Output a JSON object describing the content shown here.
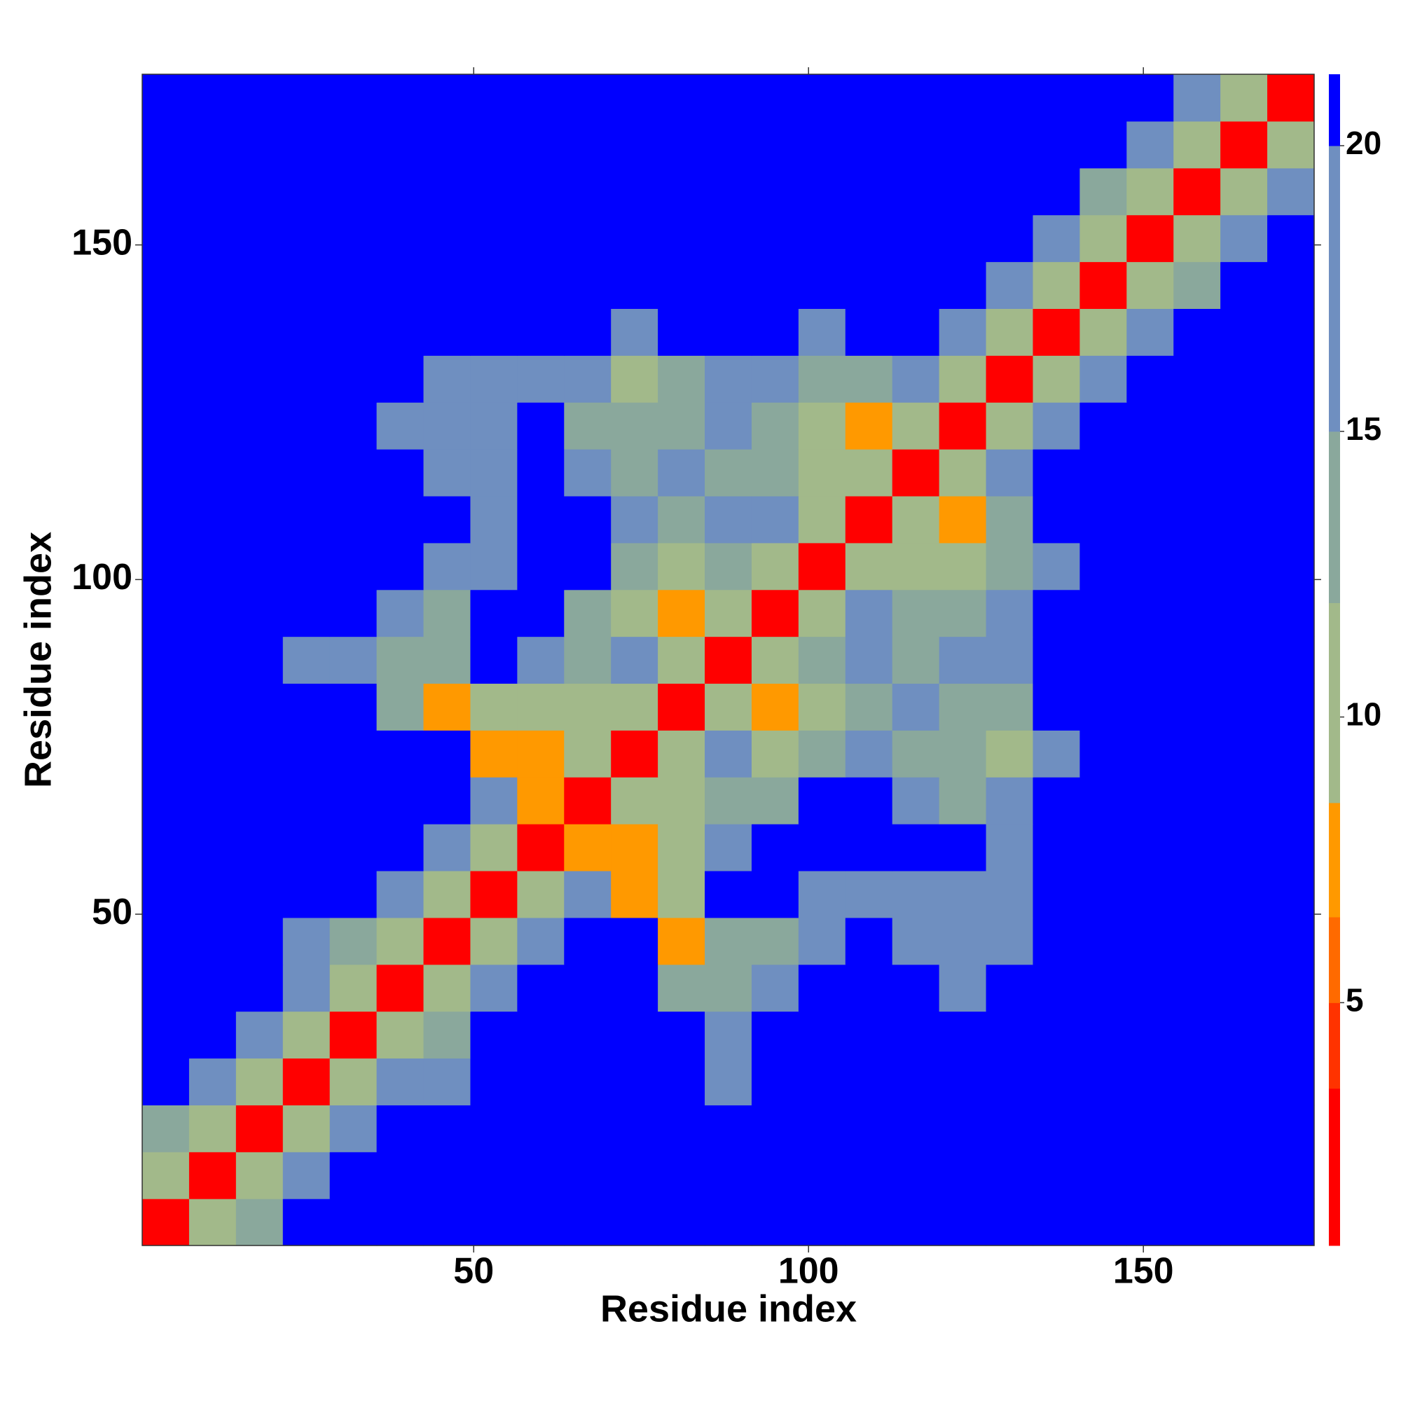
{
  "chart_data": {
    "type": "heatmap",
    "x_label": "Residue index",
    "y_label": "Residue index",
    "x": [
      4,
      11,
      18,
      25,
      32,
      39,
      46,
      53,
      60,
      67,
      74,
      81,
      88,
      95,
      102,
      109,
      116,
      123,
      130,
      137,
      144,
      151,
      158,
      165,
      172
    ],
    "y": [
      4,
      11,
      18,
      25,
      32,
      39,
      46,
      53,
      60,
      67,
      74,
      81,
      88,
      95,
      102,
      109,
      116,
      123,
      130,
      137,
      144,
      151,
      158,
      165,
      172
    ],
    "z": [
      [
        3,
        10,
        14,
        21,
        21,
        21,
        21,
        21,
        21,
        21,
        21,
        21,
        21,
        21,
        21,
        21,
        21,
        21,
        21,
        21,
        21,
        21,
        21,
        21,
        21
      ],
      [
        10,
        3,
        10,
        16,
        21,
        21,
        21,
        21,
        21,
        21,
        21,
        21,
        21,
        21,
        21,
        21,
        21,
        21,
        21,
        21,
        21,
        21,
        21,
        21,
        21
      ],
      [
        14,
        10,
        3,
        10,
        17,
        21,
        21,
        21,
        21,
        21,
        21,
        21,
        21,
        21,
        21,
        21,
        21,
        21,
        21,
        21,
        21,
        21,
        21,
        21,
        21
      ],
      [
        21,
        16,
        10,
        3,
        10,
        16,
        18,
        21,
        21,
        21,
        21,
        21,
        17,
        21,
        21,
        21,
        21,
        21,
        21,
        21,
        21,
        21,
        21,
        21,
        21
      ],
      [
        21,
        21,
        17,
        10,
        3,
        10,
        12,
        21,
        21,
        21,
        21,
        21,
        15,
        21,
        21,
        21,
        21,
        21,
        21,
        21,
        21,
        21,
        21,
        21,
        21
      ],
      [
        21,
        21,
        21,
        16,
        10,
        3,
        10,
        17,
        21,
        21,
        21,
        14,
        12,
        17,
        21,
        21,
        21,
        18,
        21,
        21,
        21,
        21,
        21,
        21,
        21
      ],
      [
        21,
        21,
        21,
        18,
        12,
        10,
        3,
        10,
        17,
        21,
        21,
        8,
        12,
        14,
        15,
        21,
        18,
        16,
        17,
        21,
        21,
        21,
        21,
        21,
        21
      ],
      [
        21,
        21,
        21,
        21,
        21,
        17,
        10,
        3,
        10,
        17,
        8,
        9,
        21,
        21,
        16,
        17,
        17,
        16,
        16,
        21,
        21,
        21,
        21,
        21,
        21
      ],
      [
        21,
        21,
        21,
        21,
        21,
        21,
        17,
        10,
        3,
        7,
        8,
        10,
        16,
        21,
        21,
        21,
        21,
        21,
        17,
        21,
        21,
        21,
        21,
        21,
        21
      ],
      [
        21,
        21,
        21,
        21,
        21,
        21,
        21,
        17,
        7,
        3,
        10,
        10,
        14,
        14,
        21,
        21,
        16,
        14,
        16,
        21,
        21,
        21,
        21,
        21,
        21
      ],
      [
        21,
        21,
        21,
        21,
        21,
        21,
        21,
        8,
        8,
        10,
        3,
        10,
        17,
        11,
        12,
        16,
        13,
        12,
        11,
        17,
        21,
        21,
        21,
        21,
        21
      ],
      [
        21,
        21,
        21,
        21,
        21,
        14,
        8,
        9,
        10,
        10,
        10,
        3,
        10,
        8,
        9,
        14,
        15,
        12,
        14,
        21,
        21,
        21,
        21,
        21,
        21
      ],
      [
        21,
        21,
        21,
        17,
        15,
        12,
        12,
        21,
        16,
        14,
        17,
        10,
        3,
        10,
        12,
        15,
        14,
        15,
        17,
        21,
        21,
        21,
        21,
        21,
        21
      ],
      [
        21,
        21,
        21,
        21,
        21,
        17,
        14,
        21,
        21,
        14,
        11,
        8,
        10,
        3,
        10,
        17,
        12,
        13,
        16,
        21,
        21,
        21,
        21,
        21,
        21
      ],
      [
        21,
        21,
        21,
        21,
        21,
        21,
        15,
        16,
        21,
        21,
        12,
        9,
        12,
        10,
        3,
        10,
        9,
        9,
        13,
        17,
        21,
        21,
        21,
        21,
        21
      ],
      [
        21,
        21,
        21,
        21,
        21,
        21,
        21,
        17,
        21,
        21,
        16,
        14,
        15,
        17,
        10,
        3,
        10,
        8,
        14,
        21,
        21,
        21,
        21,
        21,
        21
      ],
      [
        21,
        21,
        21,
        21,
        21,
        21,
        18,
        17,
        21,
        16,
        13,
        15,
        14,
        12,
        9,
        10,
        3,
        10,
        17,
        21,
        21,
        21,
        21,
        21,
        21
      ],
      [
        21,
        21,
        21,
        21,
        21,
        18,
        16,
        16,
        21,
        14,
        12,
        12,
        15,
        13,
        9,
        8,
        10,
        3,
        10,
        17,
        21,
        21,
        21,
        21,
        21
      ],
      [
        21,
        21,
        21,
        21,
        21,
        21,
        17,
        16,
        17,
        16,
        11,
        14,
        17,
        16,
        13,
        14,
        17,
        10,
        3,
        10,
        16,
        21,
        21,
        21,
        21
      ],
      [
        21,
        21,
        21,
        21,
        21,
        21,
        21,
        21,
        21,
        21,
        17,
        21,
        21,
        21,
        17,
        21,
        21,
        17,
        10,
        3,
        10,
        15,
        21,
        21,
        21
      ],
      [
        21,
        21,
        21,
        21,
        21,
        21,
        21,
        21,
        21,
        21,
        21,
        21,
        21,
        21,
        21,
        21,
        21,
        21,
        16,
        10,
        3,
        10,
        14,
        21,
        21
      ],
      [
        21,
        21,
        21,
        21,
        21,
        21,
        21,
        21,
        21,
        21,
        21,
        21,
        21,
        21,
        21,
        21,
        21,
        21,
        21,
        15,
        10,
        3,
        10,
        16,
        21
      ],
      [
        21,
        21,
        21,
        21,
        21,
        21,
        21,
        21,
        21,
        21,
        21,
        21,
        21,
        21,
        21,
        21,
        21,
        21,
        21,
        21,
        14,
        10,
        3,
        10,
        17
      ],
      [
        21,
        21,
        21,
        21,
        21,
        21,
        21,
        21,
        21,
        21,
        21,
        21,
        21,
        21,
        21,
        21,
        21,
        21,
        21,
        21,
        21,
        16,
        10,
        3,
        10
      ],
      [
        21,
        21,
        21,
        21,
        21,
        21,
        21,
        21,
        21,
        21,
        21,
        21,
        21,
        21,
        21,
        21,
        21,
        21,
        21,
        21,
        21,
        21,
        17,
        10,
        3
      ]
    ],
    "xlim": [
      0.5,
      175.5
    ],
    "ylim": [
      0.5,
      175.5
    ],
    "xticks": [
      50,
      100,
      150
    ],
    "yticks": [
      50,
      100,
      150
    ],
    "zlim": [
      0.75,
      21.25
    ],
    "zticks": [
      5,
      10,
      15,
      20
    ],
    "colorscale": [
      {
        "value": 0.75,
        "color": "#ff0000"
      },
      {
        "value": 3.5,
        "color": "#ff3300"
      },
      {
        "value": 5,
        "color": "#ff6a00"
      },
      {
        "value": 6.5,
        "color": "#ff9900"
      },
      {
        "value": 8.5,
        "color": "#a2b98a"
      },
      {
        "value": 12,
        "color": "#8aa89c"
      },
      {
        "value": 15,
        "color": "#6f8fc0"
      },
      {
        "value": 20,
        "color": "#0000ff"
      }
    ]
  }
}
